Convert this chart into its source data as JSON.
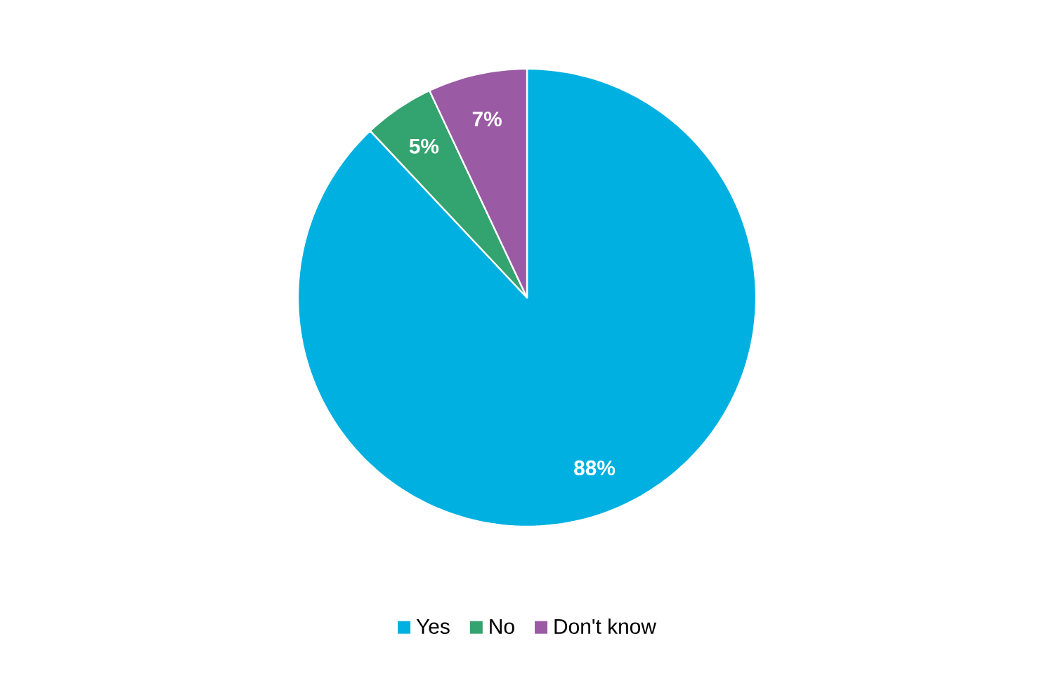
{
  "chart_data": {
    "type": "pie",
    "categories": [
      "Yes",
      "No",
      "Don't know"
    ],
    "values": [
      88,
      5,
      7
    ],
    "colors": [
      "#00b0e0",
      "#33a36f",
      "#9a5aa4"
    ],
    "value_labels": [
      "88%",
      "5%",
      "7%"
    ],
    "legend": "bottom"
  }
}
